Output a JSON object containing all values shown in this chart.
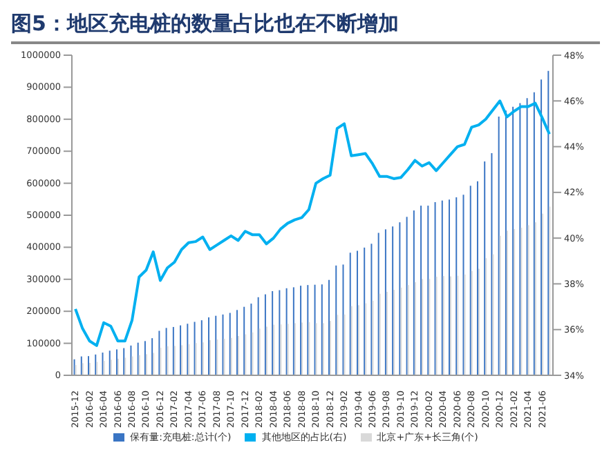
{
  "chart_data": {
    "type": "bar",
    "title": "图5：地区充电桩的数量占比也在不断增加",
    "categories": [
      "2015-12",
      null,
      "2016-02",
      null,
      "2016-04",
      null,
      "2016-06",
      null,
      "2016-08",
      null,
      "2016-10",
      null,
      "2016-12",
      null,
      "2017-02",
      null,
      "2017-04",
      null,
      "2017-06",
      null,
      "2017-08",
      null,
      "2017-10",
      null,
      "2017-12",
      null,
      "2018-02",
      null,
      "2018-04",
      null,
      "2018-06",
      null,
      "2018-08",
      null,
      "2018-10",
      null,
      "2018-12",
      null,
      "2019-02",
      null,
      "2019-04",
      null,
      "2019-06",
      null,
      "2019-08",
      null,
      "2019-10",
      null,
      "2019-12",
      null,
      "2020-02",
      null,
      "2020-04",
      null,
      "2020-06",
      null,
      "2020-08",
      null,
      "2020-10",
      null,
      "2020-12",
      null,
      "2021-02",
      null,
      "2021-04",
      null,
      "2021-06",
      null
    ],
    "series": [
      {
        "name": "保有量:充电桩:总计(个)",
        "color": "#3a75c4",
        "values": [
          50000,
          59000,
          60000,
          65000,
          71000,
          77000,
          81000,
          85000,
          93000,
          102000,
          107000,
          116000,
          139000,
          148000,
          151000,
          156000,
          161000,
          167000,
          172000,
          181000,
          186000,
          190000,
          195000,
          204000,
          214000,
          224000,
          244000,
          253000,
          263000,
          266000,
          272000,
          275000,
          280000,
          282000,
          283000,
          284000,
          298000,
          343000,
          346000,
          383000,
          389000,
          399000,
          411000,
          445000,
          456000,
          465000,
          478000,
          495000,
          515000,
          530000,
          530000,
          541000,
          546000,
          549000,
          556000,
          564000,
          592000,
          606000,
          668000,
          694000,
          808000,
          827000,
          839000,
          850000,
          866000,
          884000,
          924000,
          951000
        ]
      },
      {
        "name": "北京+广东+长三角(个)",
        "color": "#d9d9d9",
        "values": [
          32000,
          38000,
          39000,
          42000,
          45000,
          49000,
          52000,
          55000,
          59000,
          63000,
          66000,
          70000,
          86000,
          91000,
          92000,
          94000,
          97000,
          101000,
          103000,
          110000,
          112000,
          114000,
          117000,
          123000,
          128000,
          134000,
          146000,
          152000,
          158000,
          159000,
          161000,
          163000,
          165000,
          166000,
          163000,
          163000,
          170000,
          189000,
          190000,
          216000,
          219000,
          225000,
          233000,
          255000,
          261000,
          267000,
          274000,
          282000,
          291000,
          301000,
          301000,
          308000,
          310000,
          309000,
          311000,
          315000,
          326000,
          333000,
          366000,
          378000,
          436000,
          452000,
          457000,
          461000,
          469000,
          478000,
          505000,
          527000
        ]
      },
      {
        "name": "其他地区的占比(右)",
        "type": "line",
        "axis": "y2",
        "color": "#00b0f0",
        "values": [
          36.9,
          36.05,
          35.5,
          35.3,
          36.3,
          36.15,
          35.5,
          35.5,
          36.4,
          38.3,
          38.6,
          39.4,
          38.15,
          38.7,
          38.95,
          39.5,
          39.8,
          39.85,
          40.05,
          39.5,
          39.7,
          39.9,
          40.1,
          39.9,
          40.3,
          40.15,
          40.15,
          39.75,
          40.0,
          40.4,
          40.65,
          40.8,
          40.9,
          41.25,
          42.4,
          42.6,
          42.75,
          44.8,
          45.0,
          43.6,
          43.65,
          43.7,
          43.25,
          42.7,
          42.7,
          42.6,
          42.65,
          43.0,
          43.4,
          43.15,
          43.3,
          42.95,
          43.3,
          43.65,
          44.0,
          44.1,
          44.85,
          44.95,
          45.2,
          45.6,
          46.0,
          45.3,
          45.55,
          45.75,
          45.75,
          45.9,
          45.25,
          44.55
        ]
      }
    ],
    "ylim": [
      0,
      1000000
    ],
    "yticks": [
      0,
      100000,
      200000,
      300000,
      400000,
      500000,
      600000,
      700000,
      800000,
      900000,
      1000000
    ],
    "y2lim": [
      34,
      48
    ],
    "y2ticks": [
      {
        "value": 34,
        "label": "34%"
      },
      {
        "value": 36,
        "label": "36%"
      },
      {
        "value": 38,
        "label": "38%"
      },
      {
        "value": 40,
        "label": "40%"
      },
      {
        "value": 42,
        "label": "42%"
      },
      {
        "value": 44,
        "label": "44%"
      },
      {
        "value": 46,
        "label": "46%"
      },
      {
        "value": 48,
        "label": "48%"
      }
    ],
    "grid": false,
    "legend": "bottom",
    "marker": "none"
  }
}
